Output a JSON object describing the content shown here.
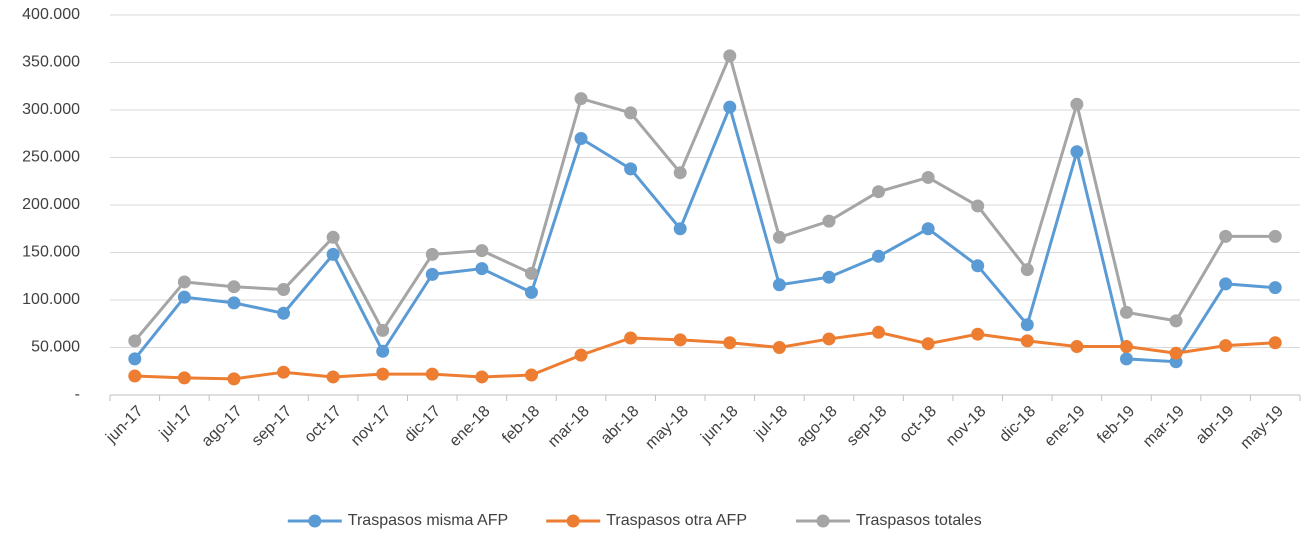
{
  "chart_data": {
    "type": "line",
    "categories": [
      "jun-17",
      "jul-17",
      "ago-17",
      "sep-17",
      "oct-17",
      "nov-17",
      "dic-17",
      "ene-18",
      "feb-18",
      "mar-18",
      "abr-18",
      "may-18",
      "jun-18",
      "jul-18",
      "ago-18",
      "sep-18",
      "oct-18",
      "nov-18",
      "dic-18",
      "ene-19",
      "feb-19",
      "mar-19",
      "abr-19",
      "may-19"
    ],
    "series": [
      {
        "name": "Traspasos misma AFP",
        "color": "#5b9bd5",
        "values": [
          38000,
          103000,
          97000,
          86000,
          148000,
          46000,
          127000,
          133000,
          108000,
          270000,
          238000,
          175000,
          303000,
          116000,
          124000,
          146000,
          175000,
          136000,
          74000,
          256000,
          38000,
          35000,
          117000,
          113000
        ]
      },
      {
        "name": "Traspasos otra AFP",
        "color": "#ed7d31",
        "values": [
          20000,
          18000,
          17000,
          24000,
          19000,
          22000,
          22000,
          19000,
          21000,
          42000,
          60000,
          58000,
          55000,
          50000,
          59000,
          66000,
          54000,
          64000,
          57000,
          51000,
          51000,
          44000,
          52000,
          55000
        ]
      },
      {
        "name": "Traspasos totales",
        "color": "#a5a5a5",
        "values": [
          57000,
          119000,
          114000,
          111000,
          166000,
          68000,
          148000,
          152000,
          128000,
          312000,
          297000,
          234000,
          357000,
          166000,
          183000,
          214000,
          229000,
          199000,
          132000,
          306000,
          87000,
          78000,
          167000,
          167000
        ]
      }
    ],
    "ylim": [
      0,
      400000
    ],
    "yticks": [
      {
        "value": 0,
        "label": "-"
      },
      {
        "value": 50000,
        "label": "50.000"
      },
      {
        "value": 100000,
        "label": "100.000"
      },
      {
        "value": 150000,
        "label": "150.000"
      },
      {
        "value": 200000,
        "label": "200.000"
      },
      {
        "value": 250000,
        "label": "250.000"
      },
      {
        "value": 300000,
        "label": "300.000"
      },
      {
        "value": 350000,
        "label": "350.000"
      },
      {
        "value": 400000,
        "label": "400.000"
      }
    ],
    "grid": true,
    "legend": "bottom"
  }
}
